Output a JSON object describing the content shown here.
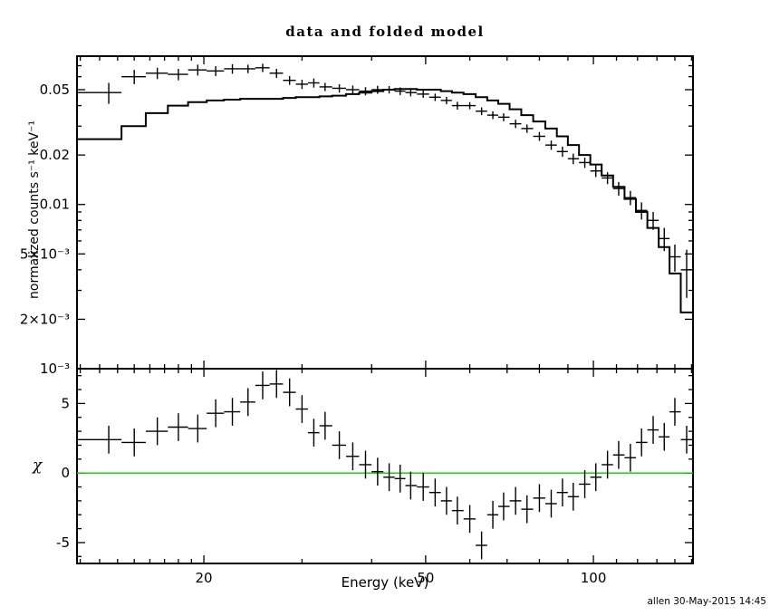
{
  "window": {
    "background": "#ffffff"
  },
  "chart_data": {
    "type": "scatter",
    "title": "data and folded model",
    "xlabel": "Energy (keV)",
    "footer": "allen 30-May-2015 14:45",
    "xscale": "log",
    "xlim": [
      11.84,
      150.9
    ],
    "xticks": [
      {
        "v": 20,
        "label": "20"
      },
      {
        "v": 50,
        "label": "50"
      },
      {
        "v": 100,
        "label": "100"
      }
    ],
    "x": [
      13.5,
      15,
      16.5,
      18,
      19.5,
      21,
      22.5,
      24,
      25.5,
      27,
      28.5,
      30,
      31.5,
      33,
      35,
      37,
      39,
      41,
      43,
      45,
      47,
      49.5,
      52,
      54.5,
      57,
      60,
      63,
      66,
      69,
      72.5,
      76,
      80,
      84,
      88,
      92,
      96.5,
      101,
      106,
      111,
      116.5,
      122,
      128,
      134,
      140,
      147
    ],
    "panels": [
      {
        "name": "spectrum",
        "ylabel": "normalized counts s⁻¹ keV⁻¹",
        "yscale": "log",
        "ylim": [
          0.001,
          0.08
        ],
        "yticks": [
          {
            "v": 0.05,
            "label": "0.05"
          },
          {
            "v": 0.02,
            "label": "0.02"
          },
          {
            "v": 0.01,
            "label": "0.01"
          },
          {
            "v": 0.005,
            "label": "5×10⁻³"
          },
          {
            "v": 0.002,
            "label": "2×10⁻³"
          },
          {
            "v": 0.001,
            "label": "10⁻³"
          }
        ],
        "series": [
          {
            "name": "data",
            "style": "cross",
            "color": "#000000",
            "y": [
              0.048,
              0.06,
              0.063,
              0.062,
              0.066,
              0.065,
              0.067,
              0.067,
              0.068,
              0.063,
              0.057,
              0.054,
              0.055,
              0.052,
              0.051,
              0.05,
              0.049,
              0.05,
              0.05,
              0.049,
              0.048,
              0.047,
              0.045,
              0.043,
              0.04,
              0.04,
              0.037,
              0.035,
              0.034,
              0.031,
              0.029,
              0.026,
              0.023,
              0.021,
              0.019,
              0.018,
              0.016,
              0.0145,
              0.0125,
              0.011,
              0.0092,
              0.008,
              0.0062,
              0.0048,
              0.004
            ],
            "yerr": [
              0.007,
              0.006,
              0.005,
              0.005,
              0.005,
              0.0045,
              0.0045,
              0.004,
              0.004,
              0.004,
              0.0035,
              0.0035,
              0.0035,
              0.003,
              0.003,
              0.003,
              0.0028,
              0.0028,
              0.0026,
              0.0026,
              0.0025,
              0.0024,
              0.0023,
              0.0022,
              0.0022,
              0.002,
              0.002,
              0.0019,
              0.0019,
              0.0018,
              0.0017,
              0.0016,
              0.0015,
              0.0015,
              0.0014,
              0.0013,
              0.0013,
              0.0012,
              0.0012,
              0.0011,
              0.0011,
              0.001,
              0.001,
              0.0009,
              0.0013
            ]
          },
          {
            "name": "folded model",
            "style": "step",
            "color": "#000000",
            "y": [
              0.025,
              0.03,
              0.036,
              0.04,
              0.042,
              0.043,
              0.0435,
              0.044,
              0.044,
              0.044,
              0.0445,
              0.045,
              0.045,
              0.0455,
              0.046,
              0.047,
              0.048,
              0.049,
              0.05,
              0.0505,
              0.0505,
              0.05,
              0.05,
              0.049,
              0.048,
              0.047,
              0.045,
              0.043,
              0.041,
              0.038,
              0.035,
              0.032,
              0.029,
              0.026,
              0.023,
              0.02,
              0.0175,
              0.015,
              0.0128,
              0.0108,
              0.009,
              0.0072,
              0.0055,
              0.0038,
              0.0022
            ],
            "end_value": 0.0012
          }
        ]
      },
      {
        "name": "residuals",
        "ylabel": "χ",
        "yscale": "linear",
        "ylim": [
          -6.5,
          7.5
        ],
        "yticks": [
          {
            "v": 5,
            "label": "5"
          },
          {
            "v": 0,
            "label": "0"
          },
          {
            "v": -5,
            "label": "-5"
          }
        ],
        "zero_line": {
          "value": 0,
          "color": "#00cc00"
        },
        "series": [
          {
            "name": "chi",
            "style": "cross",
            "color": "#000000",
            "y": [
              2.4,
              2.2,
              3.0,
              3.3,
              3.2,
              4.3,
              4.4,
              5.1,
              6.3,
              6.4,
              5.8,
              4.6,
              2.9,
              3.4,
              2.0,
              1.2,
              0.6,
              0.1,
              -0.3,
              -0.4,
              -0.9,
              -1.0,
              -1.4,
              -2.0,
              -2.7,
              -3.3,
              -5.2,
              -3.0,
              -2.4,
              -2.0,
              -2.6,
              -1.8,
              -2.2,
              -1.4,
              -1.7,
              -0.8,
              -0.3,
              0.6,
              1.3,
              1.1,
              2.2,
              3.1,
              2.6,
              4.4,
              2.4
            ],
            "yerr": 1
          }
        ]
      }
    ]
  }
}
